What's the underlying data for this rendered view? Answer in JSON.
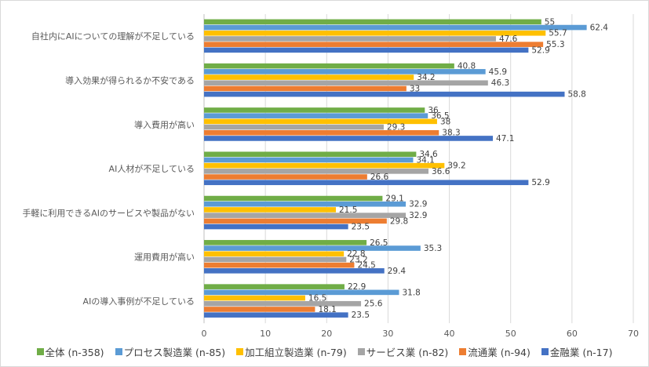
{
  "chart_data": {
    "type": "bar",
    "orientation": "horizontal",
    "categories": [
      "自社内にAIについての理解が不足している",
      "導入効果が得られるか不安である",
      "導入費用が高い",
      "AI人材が不足している",
      "手軽に利用できるAIのサービスや製品がない",
      "運用費用が高い",
      "AIの導入事例が不足している"
    ],
    "series": [
      {
        "name": "全体 (n-358)",
        "color": "#70ad47",
        "values": [
          55,
          40.8,
          36,
          34.6,
          29.1,
          26.5,
          22.9
        ]
      },
      {
        "name": "プロセス製造業 (n-85)",
        "color": "#5b9bd5",
        "values": [
          62.4,
          45.9,
          36.5,
          34.1,
          32.9,
          35.3,
          31.8
        ]
      },
      {
        "name": "加工組立製造業 (n-79)",
        "color": "#ffc000",
        "values": [
          55.7,
          34.2,
          38,
          39.2,
          21.5,
          22.8,
          16.5
        ]
      },
      {
        "name": "サービス業 (n-82)",
        "color": "#a5a5a5",
        "values": [
          47.6,
          46.3,
          29.3,
          36.6,
          32.9,
          23.2,
          25.6
        ]
      },
      {
        "name": "流通業 (n-94)",
        "color": "#ed7d31",
        "values": [
          55.3,
          33,
          38.3,
          26.6,
          29.8,
          24.5,
          18.1
        ]
      },
      {
        "name": "金融業 (n-17)",
        "color": "#4472c4",
        "values": [
          52.9,
          58.8,
          47.1,
          52.9,
          23.5,
          29.4,
          23.5
        ]
      }
    ],
    "xlim": [
      0,
      70
    ],
    "xticks": [
      "0",
      "10",
      "20",
      "30",
      "40",
      "50",
      "60",
      "70"
    ],
    "grid": true,
    "legend_position": "bottom"
  }
}
